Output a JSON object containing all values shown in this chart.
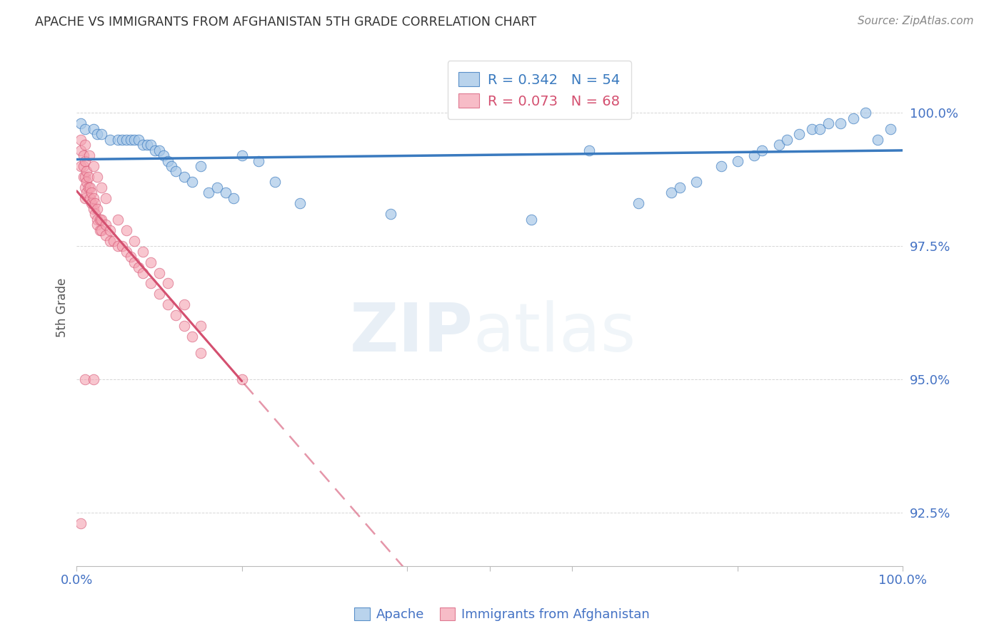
{
  "title": "APACHE VS IMMIGRANTS FROM AFGHANISTAN 5TH GRADE CORRELATION CHART",
  "source": "Source: ZipAtlas.com",
  "ylabel": "5th Grade",
  "yticks": [
    92.5,
    95.0,
    97.5,
    100.0
  ],
  "ytick_labels": [
    "92.5%",
    "95.0%",
    "97.5%",
    "100.0%"
  ],
  "xlim": [
    0.0,
    1.0
  ],
  "ylim": [
    91.5,
    101.2
  ],
  "blue_color": "#a8c8e8",
  "pink_color": "#f4a0b0",
  "line_blue": "#3a7abf",
  "line_pink": "#d45070",
  "title_color": "#333333",
  "axis_label_color": "#4472c4",
  "blue_scatter_x": [
    0.005,
    0.01,
    0.02,
    0.025,
    0.03,
    0.04,
    0.05,
    0.055,
    0.06,
    0.065,
    0.07,
    0.075,
    0.08,
    0.085,
    0.09,
    0.095,
    0.1,
    0.105,
    0.11,
    0.115,
    0.12,
    0.13,
    0.14,
    0.15,
    0.16,
    0.17,
    0.18,
    0.19,
    0.2,
    0.22,
    0.24,
    0.27,
    0.38,
    0.55,
    0.62,
    0.68,
    0.72,
    0.73,
    0.75,
    0.78,
    0.8,
    0.82,
    0.83,
    0.85,
    0.86,
    0.875,
    0.89,
    0.9,
    0.91,
    0.925,
    0.94,
    0.955,
    0.97,
    0.985
  ],
  "blue_scatter_y": [
    99.8,
    99.7,
    99.7,
    99.6,
    99.6,
    99.5,
    99.5,
    99.5,
    99.5,
    99.5,
    99.5,
    99.5,
    99.4,
    99.4,
    99.4,
    99.3,
    99.3,
    99.2,
    99.1,
    99.0,
    98.9,
    98.8,
    98.7,
    99.0,
    98.5,
    98.6,
    98.5,
    98.4,
    99.2,
    99.1,
    98.7,
    98.3,
    98.1,
    98.0,
    99.3,
    98.3,
    98.5,
    98.6,
    98.7,
    99.0,
    99.1,
    99.2,
    99.3,
    99.4,
    99.5,
    99.6,
    99.7,
    99.7,
    99.8,
    99.8,
    99.9,
    100.0,
    99.5,
    99.7
  ],
  "pink_scatter_x": [
    0.005,
    0.005,
    0.005,
    0.008,
    0.008,
    0.008,
    0.01,
    0.01,
    0.01,
    0.01,
    0.012,
    0.012,
    0.012,
    0.014,
    0.014,
    0.016,
    0.016,
    0.018,
    0.018,
    0.02,
    0.02,
    0.022,
    0.022,
    0.025,
    0.025,
    0.025,
    0.028,
    0.028,
    0.03,
    0.03,
    0.035,
    0.035,
    0.04,
    0.04,
    0.045,
    0.05,
    0.055,
    0.06,
    0.065,
    0.07,
    0.075,
    0.08,
    0.09,
    0.1,
    0.11,
    0.12,
    0.13,
    0.14,
    0.15,
    0.01,
    0.015,
    0.02,
    0.025,
    0.03,
    0.035,
    0.05,
    0.06,
    0.07,
    0.08,
    0.09,
    0.1,
    0.11,
    0.13,
    0.15,
    0.01,
    0.02,
    0.2,
    0.005
  ],
  "pink_scatter_y": [
    99.5,
    99.3,
    99.0,
    99.2,
    99.0,
    98.8,
    99.1,
    98.8,
    98.6,
    98.4,
    98.9,
    98.7,
    98.5,
    98.8,
    98.6,
    98.6,
    98.4,
    98.5,
    98.3,
    98.4,
    98.2,
    98.3,
    98.1,
    98.2,
    98.0,
    97.9,
    98.0,
    97.8,
    98.0,
    97.8,
    97.9,
    97.7,
    97.8,
    97.6,
    97.6,
    97.5,
    97.5,
    97.4,
    97.3,
    97.2,
    97.1,
    97.0,
    96.8,
    96.6,
    96.4,
    96.2,
    96.0,
    95.8,
    95.5,
    99.4,
    99.2,
    99.0,
    98.8,
    98.6,
    98.4,
    98.0,
    97.8,
    97.6,
    97.4,
    97.2,
    97.0,
    96.8,
    96.4,
    96.0,
    95.0,
    95.0,
    95.0,
    92.3
  ]
}
